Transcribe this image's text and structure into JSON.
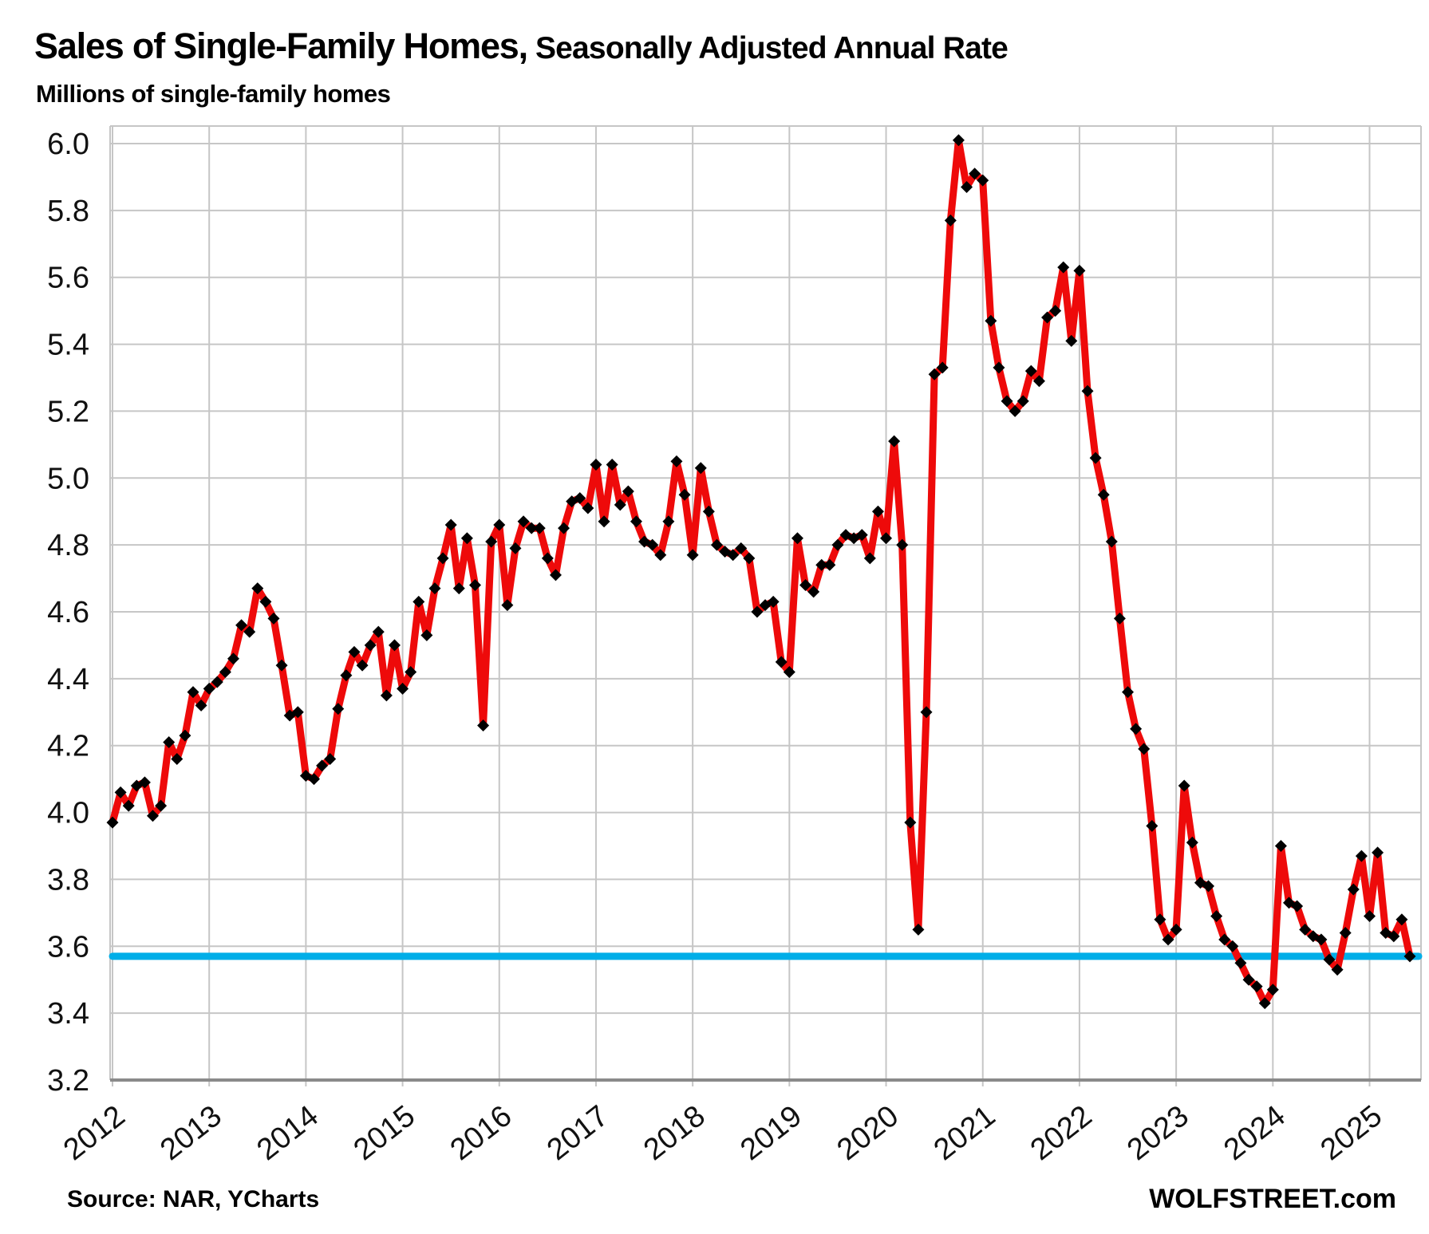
{
  "header": {
    "title_main": "Sales of Single-Family Homes,",
    "title_sub": " Seasonally Adjusted Annual Rate",
    "subtitle": "Millions of single-family homes"
  },
  "footer": {
    "source": "Source: NAR, YCharts",
    "watermark": "WOLFSTREET.com"
  },
  "colors": {
    "series_red": "#ee0a0a",
    "marker_black": "#000000",
    "reference_blue": "#00aee8",
    "grid_gray": "#c6c6c6",
    "axis_gray": "#8a8a8a",
    "tick_text": "#111111"
  },
  "chart_data": {
    "type": "line",
    "title": "Sales of Single-Family Homes, Seasonally Adjusted Annual Rate",
    "ylabel": "Millions of single-family homes",
    "x_unit": "month",
    "x_start": "2012-01",
    "x_end": "2025-06",
    "x_tick_labels": [
      "2012",
      "2013",
      "2014",
      "2015",
      "2016",
      "2017",
      "2018",
      "2019",
      "2020",
      "2021",
      "2022",
      "2023",
      "2024",
      "2025"
    ],
    "y_tick_labels": [
      "6.0",
      "5.8",
      "5.6",
      "5.4",
      "5.2",
      "5.0",
      "4.8",
      "4.6",
      "4.4",
      "4.2",
      "4.0",
      "3.8",
      "3.6",
      "3.4",
      "3.2"
    ],
    "ylim": [
      3.2,
      6.05
    ],
    "grid": true,
    "legend": false,
    "series": [
      {
        "name": "single-family-home-sales-saar-millions",
        "color": "#ee0a0a",
        "marker": "diamond",
        "marker_color": "#000000",
        "values_by_year": {
          "2012": [
            3.97,
            4.06,
            4.02,
            4.08,
            4.09,
            3.99,
            4.02,
            4.21,
            4.16,
            4.23,
            4.36,
            4.32
          ],
          "2013": [
            4.37,
            4.39,
            4.42,
            4.46,
            4.56,
            4.54,
            4.67,
            4.63,
            4.58,
            4.44,
            4.29,
            4.3
          ],
          "2014": [
            4.11,
            4.1,
            4.14,
            4.16,
            4.31,
            4.41,
            4.48,
            4.44,
            4.5,
            4.54,
            4.35,
            4.5
          ],
          "2015": [
            4.37,
            4.42,
            4.63,
            4.53,
            4.67,
            4.76,
            4.86,
            4.67,
            4.82,
            4.68,
            4.26,
            4.81
          ],
          "2016": [
            4.86,
            4.62,
            4.79,
            4.87,
            4.85,
            4.85,
            4.76,
            4.71,
            4.85,
            4.93,
            4.94,
            4.91
          ],
          "2017": [
            5.04,
            4.87,
            5.04,
            4.92,
            4.96,
            4.87,
            4.81,
            4.8,
            4.77,
            4.87,
            5.05,
            4.95
          ],
          "2018": [
            4.77,
            5.03,
            4.9,
            4.8,
            4.78,
            4.77,
            4.79,
            4.76,
            4.6,
            4.62,
            4.63,
            4.45
          ],
          "2019": [
            4.42,
            4.82,
            4.68,
            4.66,
            4.74,
            4.74,
            4.8,
            4.83,
            4.82,
            4.83,
            4.76,
            4.9
          ],
          "2020": [
            4.82,
            5.11,
            4.8,
            3.97,
            3.65,
            4.3,
            5.31,
            5.33,
            5.77,
            6.01,
            5.87,
            5.91
          ],
          "2021": [
            5.89,
            5.47,
            5.33,
            5.23,
            5.2,
            5.23,
            5.32,
            5.29,
            5.48,
            5.5,
            5.63,
            5.41
          ],
          "2022": [
            5.62,
            5.26,
            5.06,
            4.95,
            4.81,
            4.58,
            4.36,
            4.25,
            4.19,
            3.96,
            3.68,
            3.62
          ],
          "2023": [
            3.65,
            4.08,
            3.91,
            3.79,
            3.78,
            3.69,
            3.62,
            3.6,
            3.55,
            3.5,
            3.48,
            3.43
          ],
          "2024": [
            3.47,
            3.9,
            3.73,
            3.72,
            3.65,
            3.63,
            3.62,
            3.56,
            3.53,
            3.64,
            3.77,
            3.87
          ],
          "2025": [
            3.69,
            3.88,
            3.64,
            3.63,
            3.68,
            3.57
          ]
        }
      }
    ],
    "reference_line": {
      "value": 3.57,
      "color": "#00aee8"
    }
  }
}
